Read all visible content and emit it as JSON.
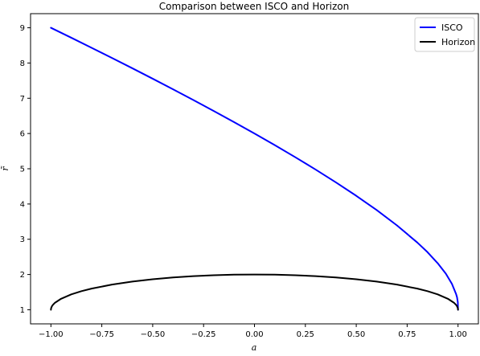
{
  "chart_data": {
    "type": "line",
    "title": "Comparison between ISCO and Horizon",
    "xlabel": "a",
    "ylabel": "r̃",
    "xlim": [
      -1.1,
      1.1
    ],
    "ylim": [
      0.6,
      9.4
    ],
    "xticks": [
      -1.0,
      -0.75,
      -0.5,
      -0.25,
      0.0,
      0.25,
      0.5,
      0.75,
      1.0
    ],
    "xtick_labels": [
      "−1.00",
      "−0.75",
      "−0.50",
      "−0.25",
      "0.00",
      "0.25",
      "0.50",
      "0.75",
      "1.00"
    ],
    "yticks": [
      1,
      2,
      3,
      4,
      5,
      6,
      7,
      8,
      9
    ],
    "ytick_labels": [
      "1",
      "2",
      "3",
      "4",
      "5",
      "6",
      "7",
      "8",
      "9"
    ],
    "grid": false,
    "legend_position": "top-right",
    "series": [
      {
        "name": "ISCO",
        "color": "#0000ff",
        "x": [
          -1.0,
          -0.9,
          -0.8,
          -0.7,
          -0.6,
          -0.5,
          -0.4,
          -0.3,
          -0.2,
          -0.1,
          0.0,
          0.1,
          0.2,
          0.3,
          0.4,
          0.5,
          0.6,
          0.7,
          0.8,
          0.85,
          0.9,
          0.94,
          0.97,
          0.99,
          0.995,
          0.999,
          1.0
        ],
        "y": [
          9.0,
          8.717,
          8.432,
          8.143,
          7.851,
          7.555,
          7.254,
          6.949,
          6.639,
          6.323,
          6.0,
          5.669,
          5.329,
          4.979,
          4.614,
          4.233,
          3.829,
          3.393,
          2.907,
          2.634,
          2.321,
          2.024,
          1.735,
          1.453,
          1.357,
          1.21,
          1.0
        ]
      },
      {
        "name": "Horizon",
        "color": "#000000",
        "x": [
          -1.0,
          -0.999,
          -0.995,
          -0.99,
          -0.98,
          -0.95,
          -0.9,
          -0.85,
          -0.8,
          -0.7,
          -0.6,
          -0.5,
          -0.4,
          -0.3,
          -0.2,
          -0.1,
          0.0,
          0.1,
          0.2,
          0.3,
          0.4,
          0.5,
          0.6,
          0.7,
          0.8,
          0.85,
          0.9,
          0.95,
          0.98,
          0.99,
          0.995,
          0.999,
          1.0
        ],
        "y": [
          1.0,
          1.045,
          1.1,
          1.141,
          1.199,
          1.312,
          1.436,
          1.527,
          1.6,
          1.714,
          1.8,
          1.866,
          1.917,
          1.954,
          1.98,
          1.995,
          2.0,
          1.995,
          1.98,
          1.954,
          1.917,
          1.866,
          1.8,
          1.714,
          1.6,
          1.527,
          1.436,
          1.312,
          1.199,
          1.141,
          1.1,
          1.045,
          1.0
        ]
      }
    ]
  }
}
